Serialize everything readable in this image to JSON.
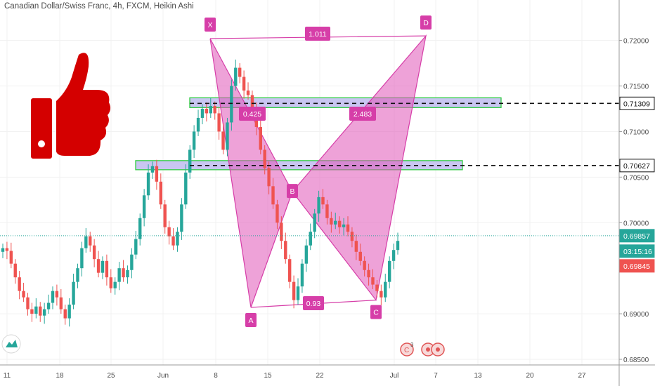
{
  "header": {
    "title": "Canadian Dollar/Swiss Franc, 4h, FXCM, Heikin Ashi"
  },
  "chart_data": {
    "type": "candlestick",
    "symbol": "Canadian Dollar/Swiss Franc",
    "timeframe": "4h",
    "source": "FXCM",
    "style": "Heikin Ashi",
    "x_ticks": [
      "11",
      "18",
      "25",
      "Jun",
      "8",
      "15",
      "22",
      "Jul",
      "7",
      "13",
      "20",
      "27"
    ],
    "y_ticks": [
      "0.72000",
      "0.71500",
      "0.71000",
      "0.70500",
      "0.70000",
      "0.69000",
      "0.68500"
    ],
    "ylim": [
      0.684,
      0.7228
    ],
    "price_labels": [
      {
        "value": "0.71309",
        "style": "level"
      },
      {
        "value": "0.70627",
        "style": "level"
      },
      {
        "value": "0.69857",
        "style": "bid"
      },
      {
        "value": "03:15:16",
        "style": "timer"
      },
      {
        "value": "0.69845",
        "style": "ask"
      }
    ],
    "levels": [
      0.71309,
      0.70627
    ],
    "current_price": 0.69857,
    "pattern": {
      "points": [
        {
          "label": "X",
          "price": 0.7202
        },
        {
          "label": "A",
          "price": 0.6907
        },
        {
          "label": "B",
          "price": 0.7034
        },
        {
          "label": "C",
          "price": 0.6915
        },
        {
          "label": "D",
          "price": 0.7205
        }
      ],
      "ratios": [
        "1.011",
        "0.425",
        "2.483",
        "0.93"
      ]
    },
    "candles": [
      {
        "o": 0.6968,
        "c": 0.6972
      },
      {
        "o": 0.6972,
        "c": 0.6969
      },
      {
        "o": 0.6969,
        "c": 0.6955
      },
      {
        "o": 0.6955,
        "c": 0.694
      },
      {
        "o": 0.694,
        "c": 0.6925
      },
      {
        "o": 0.6925,
        "c": 0.6918
      },
      {
        "o": 0.6918,
        "c": 0.6905
      },
      {
        "o": 0.6905,
        "c": 0.69
      },
      {
        "o": 0.69,
        "c": 0.6908
      },
      {
        "o": 0.6908,
        "c": 0.6898
      },
      {
        "o": 0.6898,
        "c": 0.6905
      },
      {
        "o": 0.6905,
        "c": 0.6912
      },
      {
        "o": 0.6912,
        "c": 0.6925
      },
      {
        "o": 0.6925,
        "c": 0.6918
      },
      {
        "o": 0.6918,
        "c": 0.6905
      },
      {
        "o": 0.6905,
        "c": 0.6895
      },
      {
        "o": 0.6895,
        "c": 0.691
      },
      {
        "o": 0.691,
        "c": 0.6935
      },
      {
        "o": 0.6935,
        "c": 0.695
      },
      {
        "o": 0.695,
        "c": 0.6972
      },
      {
        "o": 0.6972,
        "c": 0.6985
      },
      {
        "o": 0.6985,
        "c": 0.6975
      },
      {
        "o": 0.6975,
        "c": 0.696
      },
      {
        "o": 0.696,
        "c": 0.6945
      },
      {
        "o": 0.6945,
        "c": 0.6958
      },
      {
        "o": 0.6958,
        "c": 0.694
      },
      {
        "o": 0.694,
        "c": 0.6928
      },
      {
        "o": 0.6928,
        "c": 0.6935
      },
      {
        "o": 0.6935,
        "c": 0.695
      },
      {
        "o": 0.695,
        "c": 0.694
      },
      {
        "o": 0.694,
        "c": 0.6948
      },
      {
        "o": 0.6948,
        "c": 0.6965
      },
      {
        "o": 0.6965,
        "c": 0.6982
      },
      {
        "o": 0.6982,
        "c": 0.7005
      },
      {
        "o": 0.7005,
        "c": 0.703
      },
      {
        "o": 0.703,
        "c": 0.7055
      },
      {
        "o": 0.7055,
        "c": 0.7062
      },
      {
        "o": 0.7062,
        "c": 0.7045
      },
      {
        "o": 0.7045,
        "c": 0.702
      },
      {
        "o": 0.702,
        "c": 0.6995
      },
      {
        "o": 0.6995,
        "c": 0.6985
      },
      {
        "o": 0.6985,
        "c": 0.6975
      },
      {
        "o": 0.6975,
        "c": 0.699
      },
      {
        "o": 0.699,
        "c": 0.702
      },
      {
        "o": 0.702,
        "c": 0.7055
      },
      {
        "o": 0.7055,
        "c": 0.708
      },
      {
        "o": 0.708,
        "c": 0.71
      },
      {
        "o": 0.71,
        "c": 0.7115
      },
      {
        "o": 0.7115,
        "c": 0.7125
      },
      {
        "o": 0.7125,
        "c": 0.712
      },
      {
        "o": 0.712,
        "c": 0.7128
      },
      {
        "o": 0.7128,
        "c": 0.712
      },
      {
        "o": 0.712,
        "c": 0.71
      },
      {
        "o": 0.71,
        "c": 0.708
      },
      {
        "o": 0.708,
        "c": 0.711
      },
      {
        "o": 0.711,
        "c": 0.715
      },
      {
        "o": 0.715,
        "c": 0.717
      },
      {
        "o": 0.717,
        "c": 0.716
      },
      {
        "o": 0.716,
        "c": 0.7145
      },
      {
        "o": 0.7145,
        "c": 0.714
      },
      {
        "o": 0.714,
        "c": 0.7125
      },
      {
        "o": 0.7125,
        "c": 0.7105
      },
      {
        "o": 0.7105,
        "c": 0.708
      },
      {
        "o": 0.708,
        "c": 0.706
      },
      {
        "o": 0.706,
        "c": 0.704
      },
      {
        "o": 0.704,
        "c": 0.702
      },
      {
        "o": 0.702,
        "c": 0.7
      },
      {
        "o": 0.7,
        "c": 0.698
      },
      {
        "o": 0.698,
        "c": 0.696
      },
      {
        "o": 0.696,
        "c": 0.6935
      },
      {
        "o": 0.6935,
        "c": 0.6915
      },
      {
        "o": 0.6915,
        "c": 0.693
      },
      {
        "o": 0.693,
        "c": 0.6955
      },
      {
        "o": 0.6955,
        "c": 0.6975
      },
      {
        "o": 0.6975,
        "c": 0.699
      },
      {
        "o": 0.699,
        "c": 0.701
      },
      {
        "o": 0.701,
        "c": 0.7028
      },
      {
        "o": 0.7028,
        "c": 0.702
      },
      {
        "o": 0.702,
        "c": 0.7005
      },
      {
        "o": 0.7005,
        "c": 0.6998
      },
      {
        "o": 0.6998,
        "c": 0.7002
      },
      {
        "o": 0.7002,
        "c": 0.6995
      },
      {
        "o": 0.6995,
        "c": 0.6998
      },
      {
        "o": 0.6998,
        "c": 0.699
      },
      {
        "o": 0.699,
        "c": 0.698
      },
      {
        "o": 0.698,
        "c": 0.6968
      },
      {
        "o": 0.6968,
        "c": 0.6958
      },
      {
        "o": 0.6958,
        "c": 0.6948
      },
      {
        "o": 0.6948,
        "c": 0.694
      },
      {
        "o": 0.694,
        "c": 0.6932
      },
      {
        "o": 0.6932,
        "c": 0.6925
      },
      {
        "o": 0.6925,
        "c": 0.6918
      },
      {
        "o": 0.6918,
        "c": 0.6935
      },
      {
        "o": 0.6935,
        "c": 0.6958
      },
      {
        "o": 0.6958,
        "c": 0.697
      },
      {
        "o": 0.697,
        "c": 0.698
      }
    ]
  }
}
